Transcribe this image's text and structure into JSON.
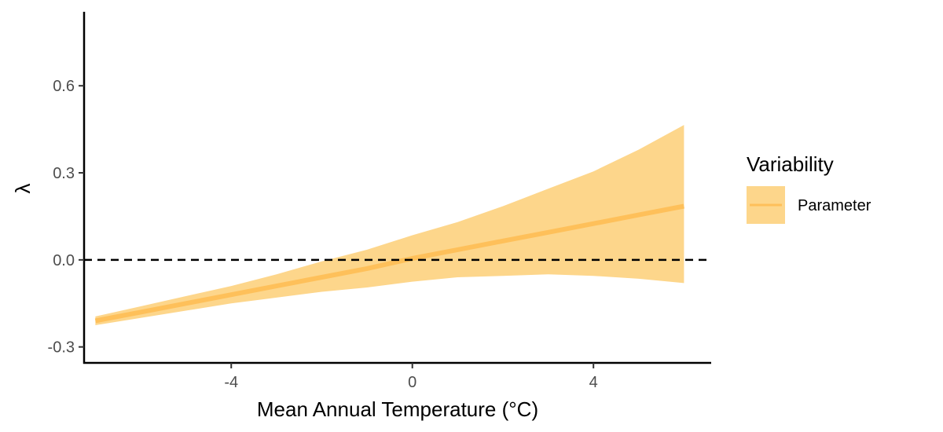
{
  "chart_data": {
    "type": "line",
    "xlabel": "Mean Annual Temperature (°C)",
    "ylabel": "λ",
    "xlim": [
      -7.25,
      6.6
    ],
    "ylim": [
      -0.355,
      0.855
    ],
    "xticks": [
      -4,
      0,
      4
    ],
    "xtick_labels": [
      "-4",
      "0",
      "4"
    ],
    "yticks": [
      -0.3,
      0,
      0.3,
      0.6
    ],
    "ytick_labels": [
      "-0.3",
      "0.0",
      "0.3",
      "0.6"
    ],
    "reference_line": {
      "y": 0,
      "style": "dashed"
    },
    "grid": false,
    "series": [
      {
        "name": "Parameter",
        "x": [
          -7.0,
          -6.0,
          -5.0,
          -4.0,
          -3.0,
          -2.0,
          -1.0,
          0.0,
          1.0,
          2.0,
          3.0,
          4.0,
          5.0,
          6.0
        ],
        "y": [
          -0.21,
          -0.18,
          -0.15,
          -0.12,
          -0.09,
          -0.06,
          -0.03,
          0.005,
          0.035,
          0.065,
          0.095,
          0.125,
          0.155,
          0.185
        ],
        "lower": [
          -0.225,
          -0.2,
          -0.175,
          -0.15,
          -0.13,
          -0.11,
          -0.095,
          -0.075,
          -0.06,
          -0.055,
          -0.05,
          -0.055,
          -0.065,
          -0.08
        ],
        "upper": [
          -0.195,
          -0.16,
          -0.125,
          -0.09,
          -0.05,
          -0.005,
          0.035,
          0.085,
          0.13,
          0.185,
          0.245,
          0.305,
          0.38,
          0.465
        ]
      }
    ],
    "legend": {
      "title": "Variability",
      "position": "right",
      "entries": [
        "Parameter"
      ]
    },
    "colors": {
      "ribbon": "#FDD68B",
      "line": "#FEC05A",
      "axis": "#000000",
      "reference": "#000000"
    }
  }
}
